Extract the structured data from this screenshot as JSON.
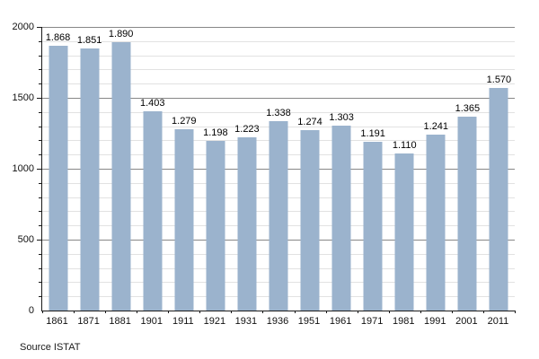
{
  "chart_data": {
    "type": "bar",
    "title": "",
    "xlabel": "",
    "ylabel": "",
    "categories": [
      "1861",
      "1871",
      "1881",
      "1901",
      "1911",
      "1921",
      "1931",
      "1936",
      "1951",
      "1961",
      "1971",
      "1981",
      "1991",
      "2001",
      "2011"
    ],
    "values": [
      1868,
      1851,
      1890,
      1403,
      1279,
      1198,
      1223,
      1338,
      1274,
      1303,
      1191,
      1110,
      1241,
      1365,
      1570
    ],
    "value_labels": [
      "1.868",
      "1.851",
      "1.890",
      "1.403",
      "1.279",
      "1.198",
      "1.223",
      "1.338",
      "1.274",
      "1.303",
      "1.191",
      "1.110",
      "1.241",
      "1.365",
      "1.570"
    ],
    "ylim": [
      0,
      2000
    ],
    "ytick_major": 500,
    "ytick_minor": 100,
    "ytick_labels": [
      "0",
      "500",
      "1000",
      "1500",
      "2000"
    ],
    "grid": "major-and-minor-horizontal",
    "legend": false,
    "bar_color": "#9bb3cd",
    "major_grid_color": "#878787",
    "minor_grid_color": "#e2e2e2",
    "axis_color": "#1a1a1a"
  },
  "source_note": "Source ISTAT"
}
